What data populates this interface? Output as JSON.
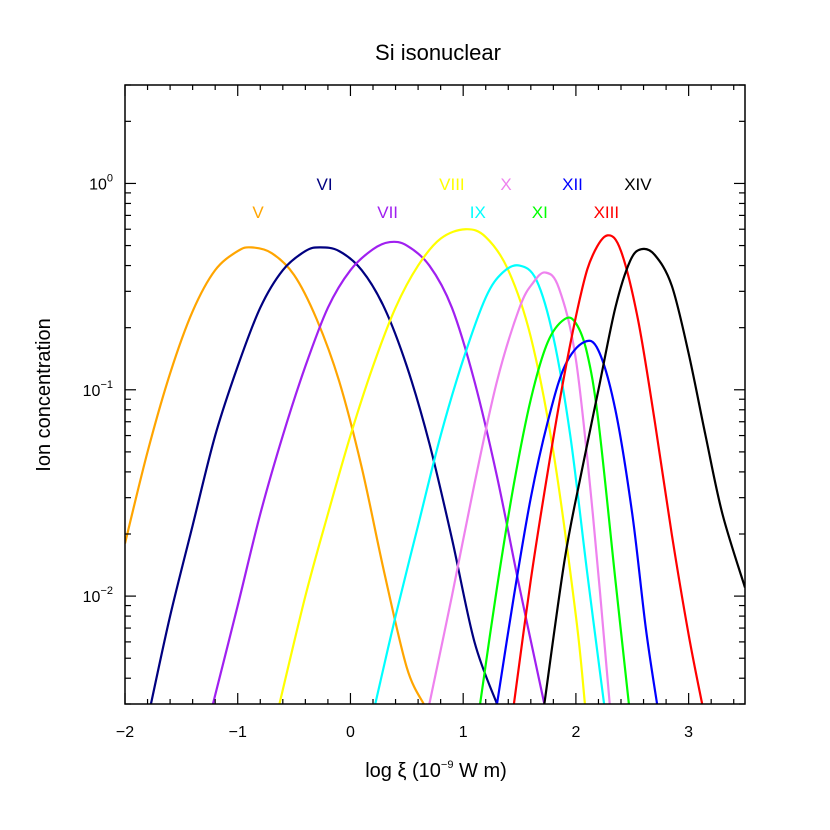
{
  "chart_data": {
    "type": "line",
    "title": "Si isonuclear",
    "xlabel": {
      "pre": "log ξ (10",
      "sup": "−9",
      "post": " W m)"
    },
    "ylabel": "Ion concentration",
    "x_scale": "linear",
    "y_scale": "log",
    "xlim": [
      -2,
      3.5
    ],
    "ylim": [
      0.003,
      3.0
    ],
    "x_ticks": [
      {
        "value": -2,
        "label": "−2"
      },
      {
        "value": -1,
        "label": "−1"
      },
      {
        "value": 0,
        "label": "0"
      },
      {
        "value": 1,
        "label": "1"
      },
      {
        "value": 2,
        "label": "2"
      },
      {
        "value": 3,
        "label": "3"
      }
    ],
    "y_ticks": [
      {
        "value": 0.01,
        "base": "10",
        "exp": "−2"
      },
      {
        "value": 0.1,
        "base": "10",
        "exp": "−1"
      },
      {
        "value": 1,
        "base": "10",
        "exp": "0"
      }
    ],
    "series": [
      {
        "name": "V",
        "color": "#FFA500",
        "x": [
          -2.0,
          -1.8,
          -1.6,
          -1.4,
          -1.2,
          -1.0,
          -0.88,
          -0.7,
          -0.5,
          -0.3,
          -0.1,
          0.1,
          0.3,
          0.5,
          0.65
        ],
        "y": [
          0.018,
          0.05,
          0.12,
          0.24,
          0.38,
          0.47,
          0.49,
          0.46,
          0.36,
          0.22,
          0.11,
          0.042,
          0.013,
          0.0045,
          0.003
        ]
      },
      {
        "name": "VI",
        "color": "#000080",
        "x": [
          -1.77,
          -1.6,
          -1.4,
          -1.2,
          -1.0,
          -0.8,
          -0.6,
          -0.4,
          -0.27,
          -0.1,
          0.1,
          0.3,
          0.5,
          0.7,
          0.9,
          1.1,
          1.3
        ],
        "y": [
          0.003,
          0.008,
          0.022,
          0.06,
          0.13,
          0.25,
          0.38,
          0.47,
          0.49,
          0.47,
          0.38,
          0.25,
          0.13,
          0.055,
          0.019,
          0.006,
          0.003
        ]
      },
      {
        "name": "VII",
        "color": "#A020F0",
        "x": [
          -1.22,
          -1.0,
          -0.8,
          -0.6,
          -0.4,
          -0.2,
          0.0,
          0.2,
          0.35,
          0.5,
          0.7,
          0.9,
          1.1,
          1.3,
          1.5,
          1.72
        ],
        "y": [
          0.003,
          0.009,
          0.025,
          0.06,
          0.13,
          0.25,
          0.38,
          0.48,
          0.52,
          0.5,
          0.4,
          0.25,
          0.11,
          0.038,
          0.011,
          0.003
        ]
      },
      {
        "name": "VIII",
        "color": "#FFFF00",
        "x": [
          -0.63,
          -0.4,
          -0.2,
          0.0,
          0.2,
          0.4,
          0.6,
          0.8,
          1.02,
          1.2,
          1.4,
          1.6,
          1.8,
          2.0,
          2.08
        ],
        "y": [
          0.003,
          0.01,
          0.025,
          0.06,
          0.13,
          0.25,
          0.4,
          0.54,
          0.6,
          0.55,
          0.38,
          0.18,
          0.05,
          0.008,
          0.003
        ]
      },
      {
        "name": "IX",
        "color": "#00FFFF",
        "x": [
          0.22,
          0.4,
          0.6,
          0.8,
          1.0,
          1.2,
          1.35,
          1.5,
          1.65,
          1.8,
          1.95,
          2.1,
          2.25
        ],
        "y": [
          0.003,
          0.008,
          0.022,
          0.06,
          0.14,
          0.28,
          0.37,
          0.4,
          0.34,
          0.18,
          0.06,
          0.013,
          0.003
        ]
      },
      {
        "name": "X",
        "color": "#EE82EE",
        "x": [
          0.7,
          0.9,
          1.1,
          1.3,
          1.5,
          1.62,
          1.73,
          1.85,
          2.0,
          2.15,
          2.3
        ],
        "y": [
          0.003,
          0.01,
          0.035,
          0.11,
          0.25,
          0.33,
          0.37,
          0.31,
          0.14,
          0.025,
          0.003
        ]
      },
      {
        "name": "XI",
        "color": "#00FF00",
        "x": [
          1.15,
          1.3,
          1.45,
          1.6,
          1.75,
          1.9,
          2.0,
          2.1,
          2.2,
          2.35,
          2.47
        ],
        "y": [
          0.003,
          0.011,
          0.035,
          0.09,
          0.17,
          0.22,
          0.21,
          0.15,
          0.07,
          0.012,
          0.003
        ]
      },
      {
        "name": "XII",
        "color": "#0000FF",
        "x": [
          1.3,
          1.45,
          1.6,
          1.75,
          1.9,
          2.07,
          2.2,
          2.35,
          2.5,
          2.62,
          2.72
        ],
        "y": [
          0.003,
          0.01,
          0.03,
          0.07,
          0.13,
          0.17,
          0.155,
          0.08,
          0.025,
          0.007,
          0.003
        ]
      },
      {
        "name": "XIII",
        "color": "#FF0000",
        "x": [
          1.45,
          1.6,
          1.75,
          1.9,
          2.05,
          2.15,
          2.28,
          2.4,
          2.55,
          2.7,
          2.85,
          3.0,
          3.12
        ],
        "y": [
          0.003,
          0.012,
          0.04,
          0.12,
          0.3,
          0.45,
          0.56,
          0.47,
          0.22,
          0.07,
          0.02,
          0.0065,
          0.003
        ]
      },
      {
        "name": "XIV",
        "color": "#000000",
        "x": [
          1.72,
          1.9,
          2.05,
          2.2,
          2.35,
          2.48,
          2.58,
          2.7,
          2.85,
          3.0,
          3.15,
          3.3,
          3.5
        ],
        "y": [
          0.003,
          0.015,
          0.04,
          0.1,
          0.25,
          0.42,
          0.48,
          0.45,
          0.32,
          0.15,
          0.06,
          0.025,
          0.011
        ]
      }
    ],
    "ion_labels": [
      {
        "text": "V",
        "color": "#FFA500",
        "x": -0.82,
        "y": 0.68
      },
      {
        "text": "VI",
        "color": "#000080",
        "x": -0.23,
        "y": 0.93
      },
      {
        "text": "VII",
        "color": "#A020F0",
        "x": 0.33,
        "y": 0.68
      },
      {
        "text": "VIII",
        "color": "#FFFF00",
        "x": 0.9,
        "y": 0.93
      },
      {
        "text": "IX",
        "color": "#00FFFF",
        "x": 1.13,
        "y": 0.68
      },
      {
        "text": "X",
        "color": "#EE82EE",
        "x": 1.38,
        "y": 0.93
      },
      {
        "text": "XI",
        "color": "#00FF00",
        "x": 1.68,
        "y": 0.68
      },
      {
        "text": "XII",
        "color": "#0000FF",
        "x": 1.97,
        "y": 0.93
      },
      {
        "text": "XIII",
        "color": "#FF0000",
        "x": 2.27,
        "y": 0.68
      },
      {
        "text": "XIV",
        "color": "#000000",
        "x": 2.55,
        "y": 0.93
      }
    ]
  }
}
